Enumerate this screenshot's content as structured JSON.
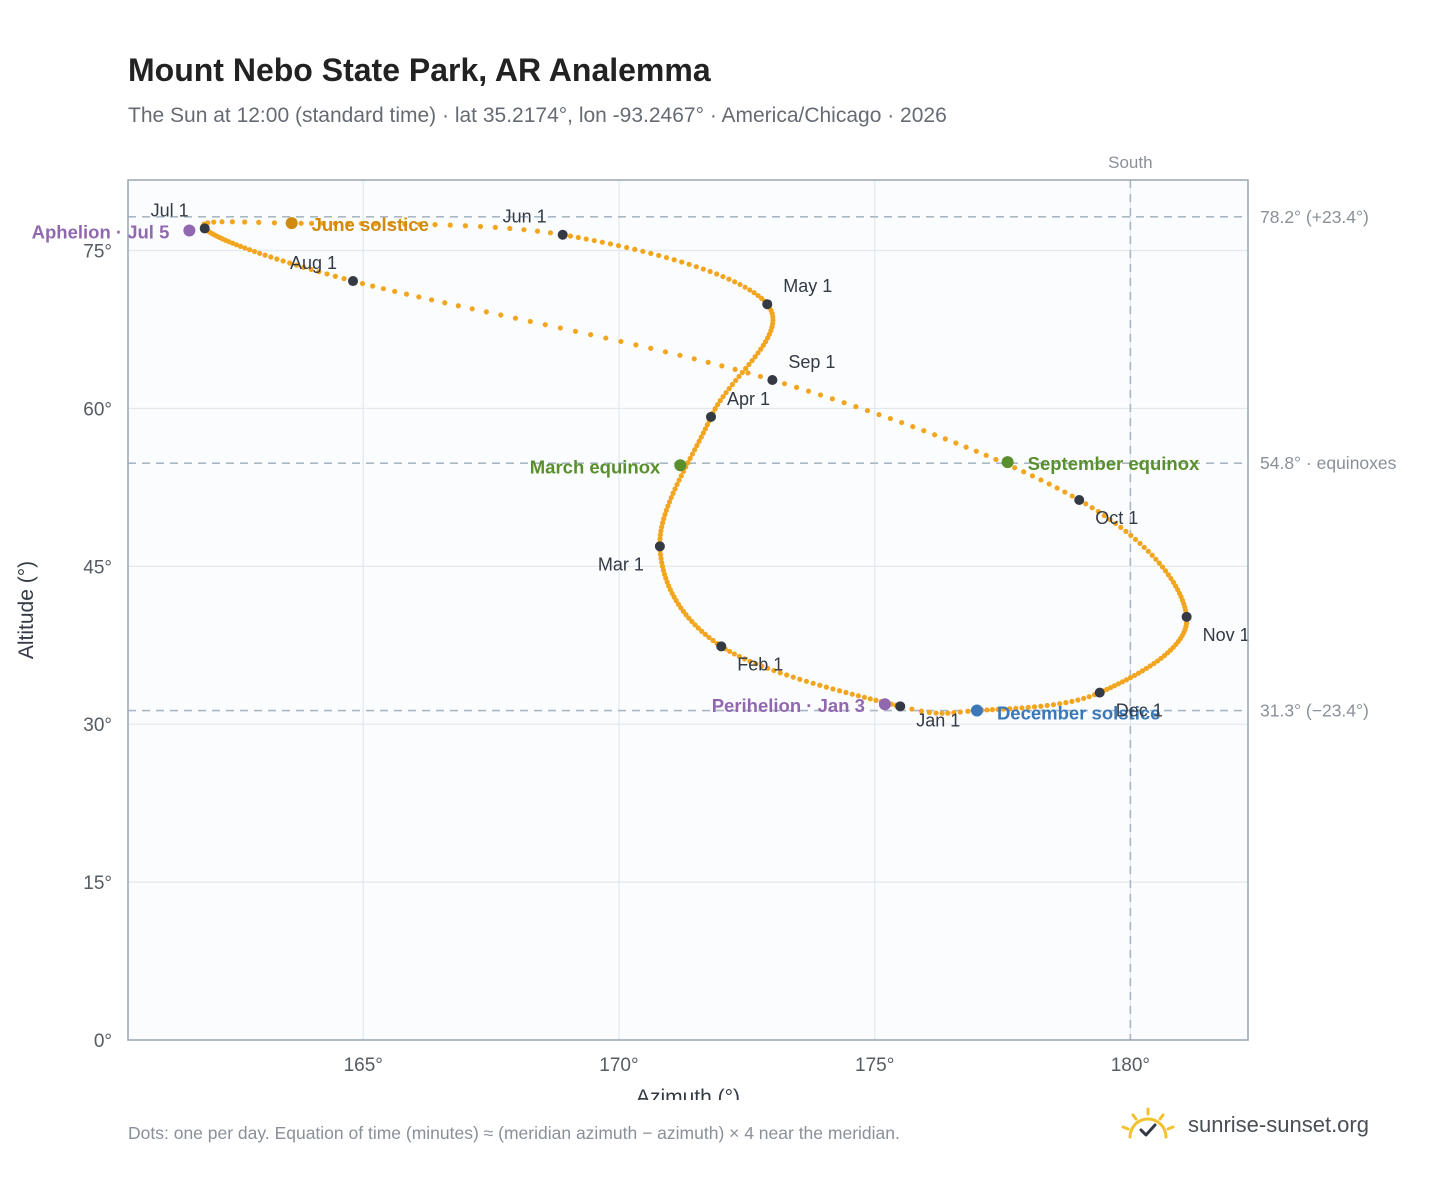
{
  "title": "Mount Nebo State Park, AR Analemma",
  "subtitle": "The Sun at 12:00 (standard time) · lat 35.2174°, lon -93.2467° · America/Chicago · 2026",
  "footnote": "Dots: one per day. Equation of time (minutes) ≈ (meridian azimuth − azimuth) × 4 near the meridian.",
  "brand": {
    "name": "sunrise-sunset.org",
    "logo_icon": "sun-check-icon"
  },
  "colors": {
    "curve": "#f2a51f",
    "month_marker": "#333a44",
    "solstice_june": "#d08a0c",
    "solstice_december": "#3a78b8",
    "equinox": "#5a8f2e",
    "apsis": "#9168b0",
    "plot_bg": "#fafcfe",
    "grid": "#e2e8ee",
    "reference": "#a9b8c4"
  },
  "chart_data": {
    "type": "scatter",
    "xlabel": "Azimuth (°)",
    "ylabel": "Altitude (°)",
    "xlim": [
      160.4,
      182.3
    ],
    "ylim": [
      0,
      81.7
    ],
    "x_ticks": [
      165,
      170,
      175,
      180
    ],
    "x_tick_labels": [
      "165°",
      "170°",
      "175°",
      "180°"
    ],
    "y_ticks": [
      0,
      15,
      30,
      45,
      60,
      75
    ],
    "y_tick_labels": [
      "0°",
      "15°",
      "30°",
      "45°",
      "60°",
      "75°"
    ],
    "grid": true,
    "meridian": {
      "azimuth": 180,
      "label": "South"
    },
    "reference_lines": [
      {
        "altitude": 78.2,
        "label": "78.2° (+23.4°)"
      },
      {
        "altitude": 54.8,
        "label": "54.8° · equinoxes"
      },
      {
        "altitude": 31.3,
        "label": "31.3° (−23.4°)"
      }
    ],
    "month_points": [
      {
        "label": "Jan 1",
        "azimuth": 175.5,
        "altitude": 31.7
      },
      {
        "label": "Feb 1",
        "azimuth": 172.0,
        "altitude": 37.4
      },
      {
        "label": "Mar 1",
        "azimuth": 170.8,
        "altitude": 46.9
      },
      {
        "label": "Apr 1",
        "azimuth": 171.8,
        "altitude": 59.2
      },
      {
        "label": "May 1",
        "azimuth": 172.9,
        "altitude": 69.9
      },
      {
        "label": "Jun 1",
        "azimuth": 168.9,
        "altitude": 76.5
      },
      {
        "label": "Jul 1",
        "azimuth": 161.9,
        "altitude": 77.1
      },
      {
        "label": "Aug 1",
        "azimuth": 164.8,
        "altitude": 72.1
      },
      {
        "label": "Sep 1",
        "azimuth": 173.0,
        "altitude": 62.7
      },
      {
        "label": "Oct 1",
        "azimuth": 179.0,
        "altitude": 51.3
      },
      {
        "label": "Nov 1",
        "azimuth": 181.1,
        "altitude": 40.2
      },
      {
        "label": "Dec 1",
        "azimuth": 179.4,
        "altitude": 33.0
      }
    ],
    "events": [
      {
        "label": "June solstice",
        "azimuth": 163.6,
        "altitude": 77.6,
        "kind": "solstice_june"
      },
      {
        "label": "December solstice",
        "azimuth": 177.0,
        "altitude": 31.3,
        "kind": "solstice_december"
      },
      {
        "label": "March equinox",
        "azimuth": 171.2,
        "altitude": 54.6,
        "kind": "equinox"
      },
      {
        "label": "September equinox",
        "azimuth": 177.6,
        "altitude": 54.9,
        "kind": "equinox"
      },
      {
        "label": "Aphelion · Jul 5",
        "azimuth": 161.6,
        "altitude": 76.9,
        "kind": "apsis"
      },
      {
        "label": "Perihelion · Jan 3",
        "azimuth": 175.2,
        "altitude": 31.9,
        "kind": "apsis"
      }
    ]
  }
}
